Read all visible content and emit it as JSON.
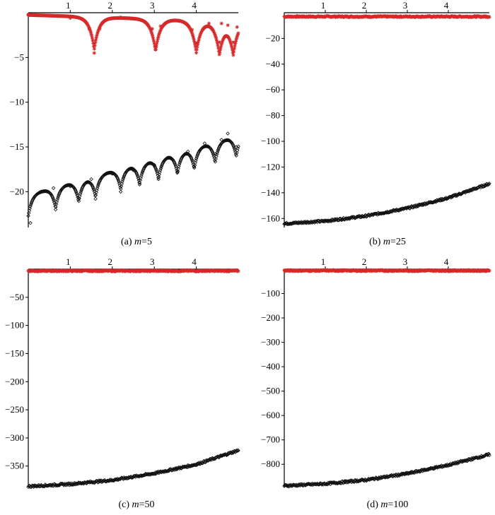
{
  "colors": {
    "red_series": "#d42a2a",
    "black_series": "#111111",
    "axis": "#000000"
  },
  "chart_data": [
    {
      "type": "scatter",
      "caption_prefix": "(a) ",
      "caption_var": "m",
      "caption_value": "=5",
      "x_ticks": [
        1,
        2,
        3,
        4
      ],
      "y_ticks": [
        -5,
        -10,
        -15,
        -20
      ],
      "xlim": [
        0,
        5.0
      ],
      "ylim": [
        -24,
        0
      ],
      "grid": false,
      "series": [
        {
          "color": "red",
          "marker": "star",
          "x": [
            0.0,
            0.5,
            1.0,
            1.45,
            1.57,
            1.7,
            2.2,
            2.95,
            3.03,
            3.15,
            3.6,
            3.9,
            4.0,
            4.3,
            4.55,
            4.6,
            4.75,
            4.88,
            4.97
          ],
          "y": [
            -0.2,
            -0.3,
            -0.6,
            -1.8,
            -4.5,
            -1.8,
            -0.5,
            -1.8,
            -3.8,
            -1.5,
            -0.9,
            -1.9,
            -3.4,
            -1.2,
            -3.3,
            -1.2,
            -1.4,
            -3.3,
            -1.6
          ]
        },
        {
          "color": "black",
          "marker": "diamond",
          "x": [
            0.05,
            0.3,
            0.6,
            0.65,
            1.0,
            1.2,
            1.5,
            1.6,
            2.0,
            2.2,
            2.5,
            2.65,
            3.0,
            3.1,
            3.4,
            3.55,
            3.8,
            3.95,
            4.2,
            4.45,
            4.6,
            4.75,
            4.95
          ],
          "y": [
            -23.5,
            -20.0,
            -19.6,
            -22.0,
            -19.4,
            -20.7,
            -18.6,
            -20.8,
            -18.0,
            -20.0,
            -17.6,
            -19.2,
            -17.0,
            -18.6,
            -16.3,
            -17.8,
            -15.5,
            -17.2,
            -14.6,
            -15.8,
            -14.2,
            -13.5,
            -15.0
          ]
        }
      ]
    },
    {
      "type": "scatter",
      "caption_prefix": "(b) ",
      "caption_var": "m",
      "caption_value": "=25",
      "x_ticks": [
        1,
        2,
        3,
        4
      ],
      "y_ticks": [
        -20,
        -40,
        -60,
        -80,
        -100,
        -120,
        -140,
        -160
      ],
      "xlim": [
        0,
        5.0
      ],
      "ylim": [
        -167,
        0
      ],
      "grid": false,
      "series": [
        {
          "color": "red",
          "marker": "star",
          "curve": [
            [
              0,
              -3
            ],
            [
              5.0,
              -3
            ]
          ]
        },
        {
          "color": "black",
          "marker": "diamond",
          "curve": [
            [
              0,
              -164
            ],
            [
              1,
              -162
            ],
            [
              2,
              -158
            ],
            [
              3,
              -152
            ],
            [
              4,
              -144
            ],
            [
              5.0,
              -133
            ]
          ]
        }
      ]
    },
    {
      "type": "scatter",
      "caption_prefix": "(c) ",
      "caption_var": "m",
      "caption_value": "=50",
      "x_ticks": [
        1,
        2,
        3,
        4
      ],
      "y_ticks": [
        -50,
        -100,
        -150,
        -200,
        -250,
        -300,
        -350
      ],
      "xlim": [
        0,
        5.0
      ],
      "ylim": [
        -388,
        0
      ],
      "grid": false,
      "series": [
        {
          "color": "red",
          "marker": "star",
          "curve": [
            [
              0,
              -3
            ],
            [
              5.0,
              -3
            ]
          ]
        },
        {
          "color": "black",
          "marker": "diamond",
          "curve": [
            [
              0,
              -386
            ],
            [
              1,
              -382
            ],
            [
              2,
              -375
            ],
            [
              3,
              -363
            ],
            [
              4,
              -347
            ],
            [
              5.0,
              -322
            ]
          ]
        }
      ]
    },
    {
      "type": "scatter",
      "caption_prefix": "(d) ",
      "caption_var": "m",
      "caption_value": "=100",
      "x_ticks": [
        1,
        2,
        3,
        4
      ],
      "y_ticks": [
        -100,
        -200,
        -300,
        -400,
        -500,
        -600,
        -700,
        -800
      ],
      "xlim": [
        0,
        5.0
      ],
      "ylim": [
        -895,
        0
      ],
      "grid": false,
      "series": [
        {
          "color": "red",
          "marker": "star",
          "curve": [
            [
              0,
              -6
            ],
            [
              5.0,
              -6
            ]
          ]
        },
        {
          "color": "black",
          "marker": "diamond",
          "curve": [
            [
              0,
              -888
            ],
            [
              1,
              -880
            ],
            [
              2,
              -864
            ],
            [
              3,
              -838
            ],
            [
              4,
              -803
            ],
            [
              5.0,
              -760
            ]
          ]
        }
      ]
    }
  ]
}
